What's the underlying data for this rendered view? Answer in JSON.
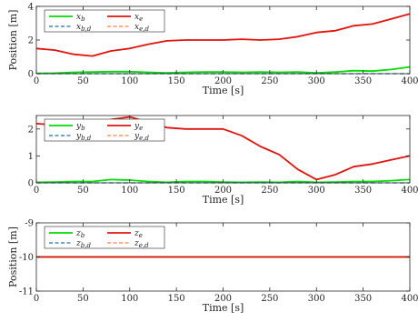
{
  "chart_data": [
    {
      "type": "line",
      "xlabel": "Time [s]",
      "ylabel": "Position [m]",
      "xlim": [
        0,
        400
      ],
      "ylim": [
        0,
        4
      ],
      "xticks": [
        "0",
        "50",
        "100",
        "150",
        "200",
        "250",
        "300",
        "350",
        "400"
      ],
      "yticks": [
        "0",
        "2",
        "4"
      ],
      "legend": {
        "placement": "top-left",
        "entries": [
          {
            "base": "x",
            "sub": "b",
            "color": "#00dd00",
            "style": "solid"
          },
          {
            "base": "x",
            "sub": "e",
            "color": "#e0140c",
            "style": "solid"
          },
          {
            "base": "x",
            "sub": "b,d",
            "color": "#1f6fb4",
            "style": "dashed"
          },
          {
            "base": "x",
            "sub": "e,d",
            "color": "#ff8040",
            "style": "dashed"
          }
        ]
      },
      "series": [
        {
          "color": "#00dd00",
          "style": "solid",
          "x": [
            0,
            20,
            40,
            60,
            80,
            100,
            120,
            140,
            160,
            180,
            200,
            220,
            240,
            260,
            280,
            300,
            320,
            340,
            360,
            380,
            400
          ],
          "y": [
            0.02,
            0.03,
            0.08,
            0.1,
            0.12,
            0.12,
            0.08,
            0.05,
            0.08,
            0.1,
            0.1,
            0.08,
            0.1,
            0.08,
            0.1,
            0.05,
            0.1,
            0.18,
            0.15,
            0.25,
            0.4
          ]
        },
        {
          "color": "#1f6fb4",
          "style": "dashed",
          "x": [
            0,
            400
          ],
          "y": [
            0,
            0
          ]
        },
        {
          "color": "#ff8040",
          "style": "dashed",
          "x": [
            0,
            20,
            40,
            60,
            80,
            100,
            120,
            140,
            160,
            180,
            200,
            220,
            240,
            260,
            280,
            300,
            320,
            340,
            360,
            380,
            400
          ],
          "y": [
            1.5,
            1.4,
            1.15,
            1.05,
            1.35,
            1.5,
            1.75,
            1.95,
            2.0,
            2.0,
            2.0,
            2.05,
            2.0,
            2.05,
            2.2,
            2.45,
            2.55,
            2.85,
            2.95,
            3.25,
            3.55
          ]
        },
        {
          "color": "#e0140c",
          "style": "solid",
          "x": [
            0,
            20,
            40,
            60,
            80,
            100,
            120,
            140,
            160,
            180,
            200,
            220,
            240,
            260,
            280,
            300,
            320,
            340,
            360,
            380,
            400
          ],
          "y": [
            1.5,
            1.4,
            1.15,
            1.05,
            1.35,
            1.5,
            1.75,
            1.95,
            2.0,
            2.0,
            2.0,
            2.05,
            2.0,
            2.05,
            2.2,
            2.45,
            2.55,
            2.85,
            2.95,
            3.25,
            3.55
          ]
        }
      ]
    },
    {
      "type": "line",
      "xlabel": "Time [s]",
      "ylabel": "",
      "xlim": [
        0,
        400
      ],
      "ylim": [
        0,
        2.5
      ],
      "xticks": [
        "0",
        "50",
        "100",
        "150",
        "200",
        "250",
        "300",
        "350",
        "400"
      ],
      "yticks": [
        "0",
        "1",
        "2"
      ],
      "legend": {
        "placement": "top-left",
        "entries": [
          {
            "base": "y",
            "sub": "b",
            "color": "#00dd00",
            "style": "solid"
          },
          {
            "base": "y",
            "sub": "e",
            "color": "#e0140c",
            "style": "solid"
          },
          {
            "base": "y",
            "sub": "b,d",
            "color": "#1f6fb4",
            "style": "dashed"
          },
          {
            "base": "y",
            "sub": "e,d",
            "color": "#ff8040",
            "style": "dashed"
          }
        ]
      },
      "series": [
        {
          "color": "#00dd00",
          "style": "solid",
          "x": [
            0,
            20,
            40,
            60,
            80,
            100,
            120,
            140,
            160,
            180,
            200,
            220,
            240,
            260,
            280,
            300,
            320,
            340,
            360,
            380,
            400
          ],
          "y": [
            0.02,
            0.03,
            0.05,
            0.05,
            0.12,
            0.1,
            0.05,
            0.02,
            0.05,
            0.05,
            0.03,
            0.02,
            0.03,
            0.02,
            0.05,
            0.02,
            0.03,
            0.05,
            0.05,
            0.08,
            0.12
          ]
        },
        {
          "color": "#1f6fb4",
          "style": "dashed",
          "x": [
            0,
            400
          ],
          "y": [
            0,
            0
          ]
        },
        {
          "color": "#ff8040",
          "style": "dashed",
          "x": [
            0,
            20,
            40,
            60,
            80,
            100,
            120,
            140,
            160,
            180,
            200,
            220,
            240,
            260,
            280,
            300,
            320,
            340,
            360,
            380,
            400
          ],
          "y": [
            2.2,
            2.15,
            2.05,
            2.1,
            2.35,
            2.45,
            2.25,
            2.05,
            2.0,
            2.0,
            2.0,
            1.75,
            1.35,
            1.05,
            0.5,
            0.12,
            0.3,
            0.6,
            0.7,
            0.85,
            1.0
          ]
        },
        {
          "color": "#e0140c",
          "style": "solid",
          "x": [
            0,
            20,
            40,
            60,
            80,
            100,
            120,
            140,
            160,
            180,
            200,
            220,
            240,
            260,
            280,
            300,
            320,
            340,
            360,
            380,
            400
          ],
          "y": [
            2.2,
            2.15,
            2.05,
            2.1,
            2.35,
            2.45,
            2.25,
            2.05,
            2.0,
            2.0,
            2.0,
            1.75,
            1.35,
            1.05,
            0.5,
            0.12,
            0.3,
            0.6,
            0.7,
            0.85,
            1.0
          ]
        }
      ]
    },
    {
      "type": "line",
      "xlabel": "Time [s]",
      "ylabel": "Position [m]",
      "xlim": [
        0,
        400
      ],
      "ylim": [
        -11,
        -9
      ],
      "xticks": [
        "0",
        "50",
        "100",
        "150",
        "200",
        "250",
        "300",
        "350",
        "400"
      ],
      "yticks": [
        "-11",
        "-10",
        "-9"
      ],
      "legend": {
        "placement": "top-left",
        "entries": [
          {
            "base": "z",
            "sub": "b",
            "color": "#00dd00",
            "style": "solid"
          },
          {
            "base": "z",
            "sub": "e",
            "color": "#e0140c",
            "style": "solid"
          },
          {
            "base": "z",
            "sub": "b,d",
            "color": "#1f6fb4",
            "style": "dashed"
          },
          {
            "base": "z",
            "sub": "e,d",
            "color": "#ff8040",
            "style": "dashed"
          }
        ]
      },
      "series": [
        {
          "color": "#00dd00",
          "style": "solid",
          "x": [
            0,
            400
          ],
          "y": [
            -10,
            -10
          ]
        },
        {
          "color": "#1f6fb4",
          "style": "dashed",
          "x": [
            0,
            400
          ],
          "y": [
            -10,
            -10
          ]
        },
        {
          "color": "#ff8040",
          "style": "dashed",
          "x": [
            0,
            400
          ],
          "y": [
            -10,
            -10
          ]
        },
        {
          "color": "#e0140c",
          "style": "solid",
          "x": [
            0,
            400
          ],
          "y": [
            -10,
            -10
          ]
        }
      ]
    }
  ]
}
